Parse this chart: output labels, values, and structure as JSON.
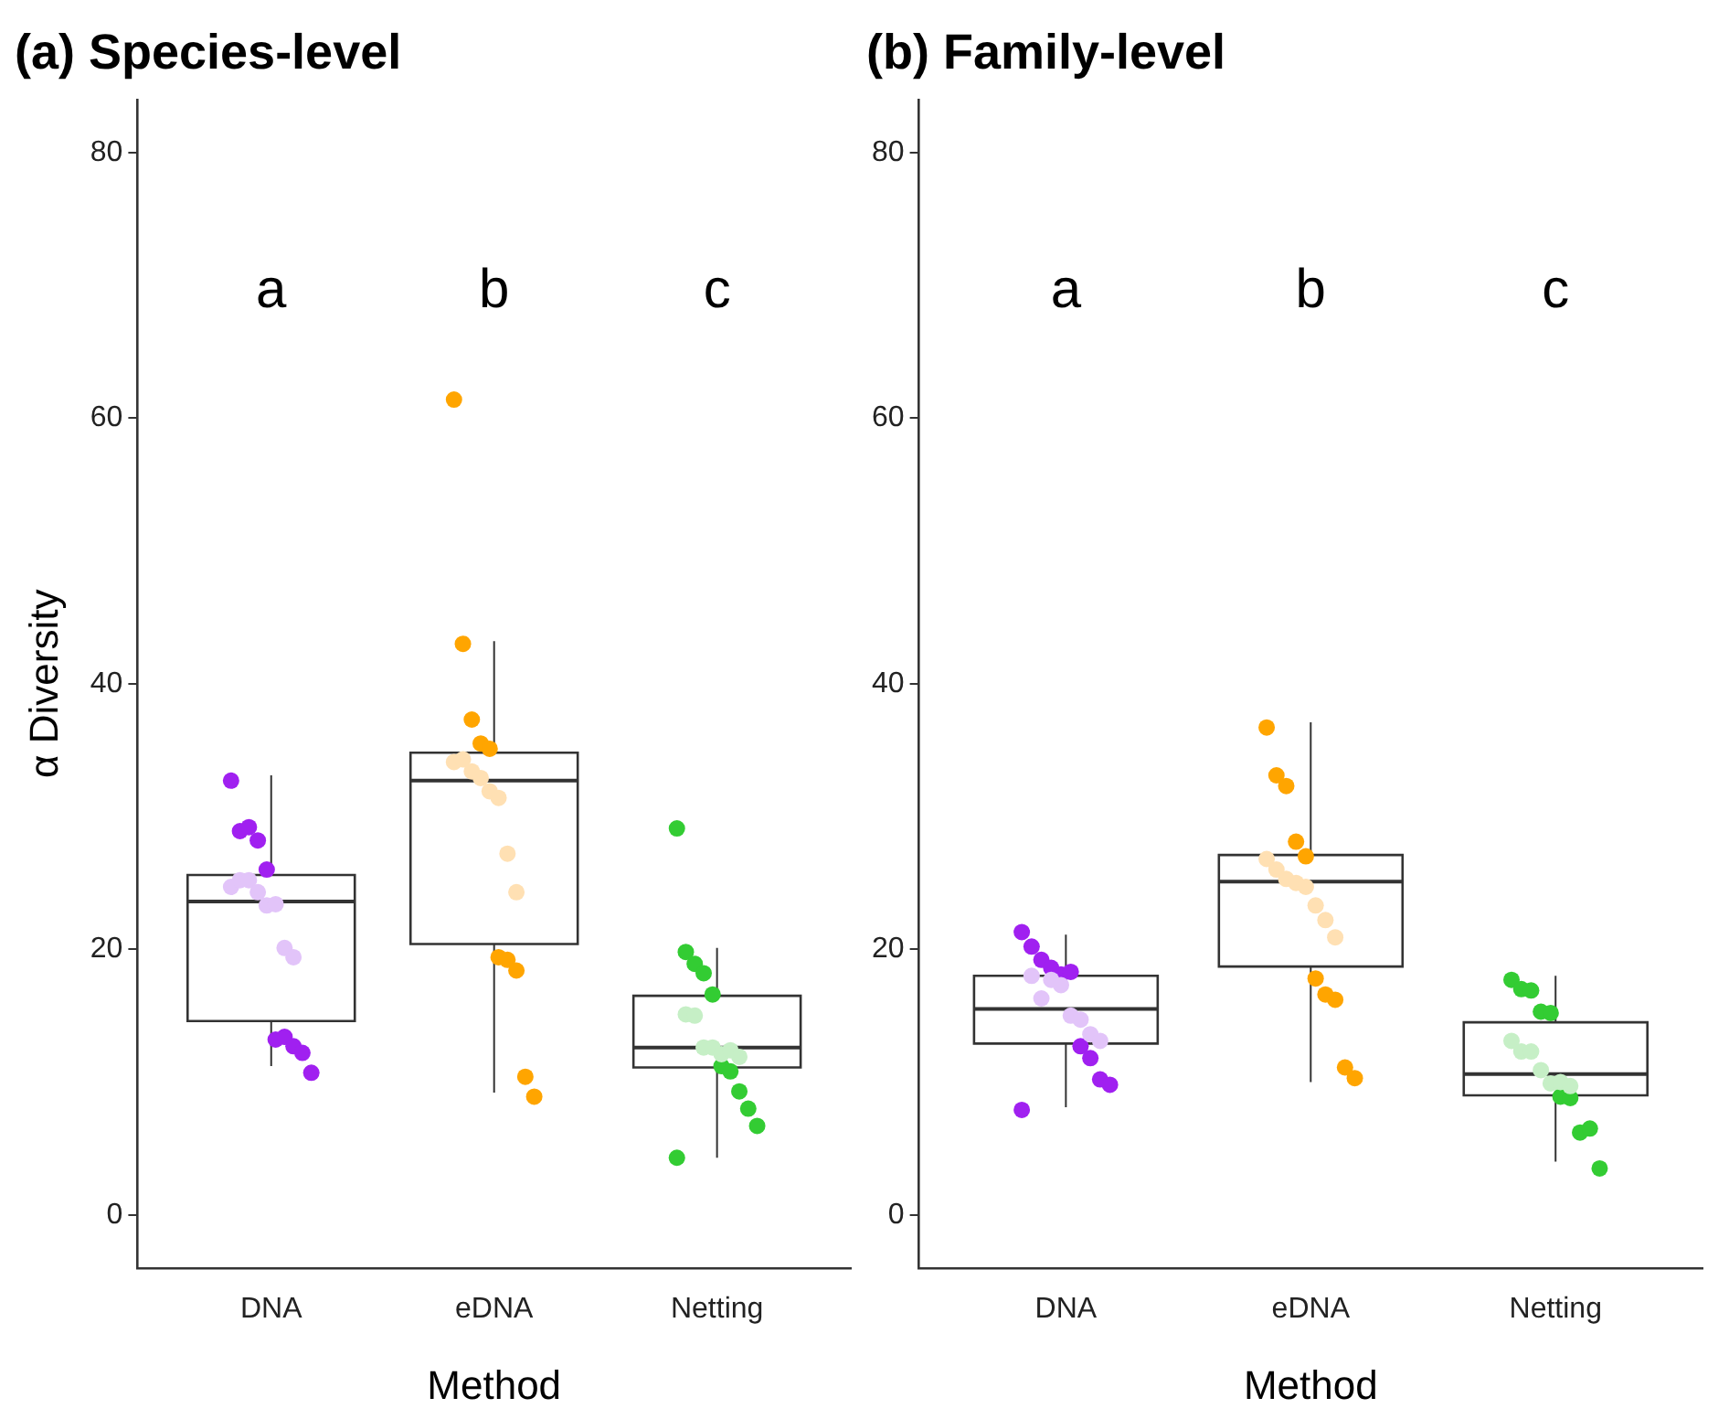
{
  "chart_data": [
    {
      "type": "box",
      "title": "(a) Species-level",
      "xlabel": "Method",
      "ylabel": "α Diversity",
      "categories": [
        "DNA",
        "eDNA",
        "Netting"
      ],
      "ylim": [
        -4,
        84
      ],
      "yticks": [
        0,
        20,
        40,
        60,
        80
      ],
      "marker": "circle",
      "boxes": [
        {
          "low": 11.2,
          "q1": 14.6,
          "median": 23.6,
          "q3": 25.6,
          "high": 33.1
        },
        {
          "low": 9.2,
          "q1": 20.4,
          "median": 32.7,
          "q3": 34.8,
          "high": 43.2
        },
        {
          "low": 4.3,
          "q1": 11.1,
          "median": 12.6,
          "q3": 16.5,
          "high": 20.1
        }
      ],
      "annotations": [
        "a",
        "b",
        "c"
      ],
      "series": [
        {
          "type": "scatter",
          "x": [
            "DNA",
            "DNA",
            "DNA",
            "DNA",
            "DNA",
            "DNA",
            "DNA",
            "DNA",
            "DNA",
            "DNA",
            "DNA",
            "DNA",
            "DNA",
            "DNA",
            "DNA",
            "DNA",
            "DNA",
            "DNA"
          ],
          "values": [
            32.7,
            28.9,
            29.2,
            28.2,
            26.0,
            13.2,
            13.4,
            12.7,
            12.2,
            10.7,
            24.7,
            25.2,
            25.2,
            24.3,
            23.3,
            23.4,
            20.1,
            19.4
          ],
          "colors": [
            "#a020f0",
            "#a020f0",
            "#a020f0",
            "#a020f0",
            "#a020f0",
            "#a020f0",
            "#a020f0",
            "#a020f0",
            "#a020f0",
            "#a020f0",
            "#e2c4f9",
            "#e2c4f9",
            "#e2c4f9",
            "#e2c4f9",
            "#e2c4f9",
            "#e2c4f9",
            "#e2c4f9",
            "#e2c4f9"
          ]
        },
        {
          "type": "scatter",
          "x": [
            "eDNA",
            "eDNA",
            "eDNA",
            "eDNA",
            "eDNA",
            "eDNA",
            "eDNA",
            "eDNA",
            "eDNA",
            "eDNA",
            "eDNA",
            "eDNA",
            "eDNA",
            "eDNA",
            "eDNA",
            "eDNA",
            "eDNA",
            "eDNA"
          ],
          "values": [
            61.4,
            43.0,
            37.3,
            35.5,
            35.1,
            19.4,
            19.2,
            18.4,
            10.4,
            8.9,
            34.1,
            34.3,
            33.4,
            32.9,
            31.9,
            31.4,
            27.2,
            24.3
          ],
          "colors": [
            "#ffa500",
            "#ffa500",
            "#ffa500",
            "#ffa500",
            "#ffa500",
            "#ffa500",
            "#ffa500",
            "#ffa500",
            "#ffa500",
            "#ffa500",
            "#ffe0b3",
            "#ffe0b3",
            "#ffe0b3",
            "#ffe0b3",
            "#ffe0b3",
            "#ffe0b3",
            "#ffe0b3",
            "#ffe0b3"
          ]
        },
        {
          "type": "scatter",
          "x": [
            "Netting",
            "Netting",
            "Netting",
            "Netting",
            "Netting",
            "Netting",
            "Netting",
            "Netting",
            "Netting",
            "Netting",
            "Netting",
            "Netting",
            "Netting",
            "Netting",
            "Netting",
            "Netting",
            "Netting",
            "Netting"
          ],
          "values": [
            29.1,
            19.8,
            18.9,
            18.2,
            16.6,
            11.2,
            10.8,
            9.3,
            8.0,
            6.7,
            4.3,
            15.1,
            15.0,
            12.6,
            12.6,
            12.1,
            12.4,
            11.9
          ],
          "colors": [
            "#33cc33",
            "#33cc33",
            "#33cc33",
            "#33cc33",
            "#33cc33",
            "#33cc33",
            "#33cc33",
            "#33cc33",
            "#33cc33",
            "#33cc33",
            "#33cc33",
            "#c6efc6",
            "#c6efc6",
            "#c6efc6",
            "#c6efc6",
            "#c6efc6",
            "#c6efc6",
            "#c6efc6"
          ]
        }
      ]
    },
    {
      "type": "box",
      "title": "(b) Family-level",
      "xlabel": "Method",
      "categories": [
        "DNA",
        "eDNA",
        "Netting"
      ],
      "ylim": [
        -4,
        84
      ],
      "yticks": [
        0,
        20,
        40,
        60,
        80
      ],
      "marker": "circle",
      "boxes": [
        {
          "low": 8.1,
          "q1": 12.9,
          "median": 15.5,
          "q3": 18.0,
          "high": 21.1
        },
        {
          "low": 10.0,
          "q1": 18.7,
          "median": 25.1,
          "q3": 27.1,
          "high": 37.1
        },
        {
          "low": 4.0,
          "q1": 9.0,
          "median": 10.6,
          "q3": 14.5,
          "high": 18.0
        }
      ],
      "annotations": [
        "a",
        "b",
        "c"
      ],
      "series": [
        {
          "type": "scatter",
          "x": [
            "DNA",
            "DNA",
            "DNA",
            "DNA",
            "DNA",
            "DNA",
            "DNA",
            "DNA",
            "DNA",
            "DNA",
            "DNA",
            "DNA",
            "DNA",
            "DNA",
            "DNA",
            "DNA",
            "DNA",
            "DNA",
            "DNA"
          ],
          "values": [
            21.3,
            20.2,
            19.2,
            18.6,
            18.1,
            18.3,
            12.7,
            11.8,
            10.2,
            9.8,
            7.9,
            18.0,
            16.3,
            17.7,
            17.3,
            15.0,
            14.7,
            13.6,
            13.1
          ],
          "colors": [
            "#a020f0",
            "#a020f0",
            "#a020f0",
            "#a020f0",
            "#a020f0",
            "#a020f0",
            "#a020f0",
            "#a020f0",
            "#a020f0",
            "#a020f0",
            "#a020f0",
            "#e2c4f9",
            "#e2c4f9",
            "#e2c4f9",
            "#e2c4f9",
            "#e2c4f9",
            "#e2c4f9",
            "#e2c4f9",
            "#e2c4f9"
          ]
        },
        {
          "type": "scatter",
          "x": [
            "eDNA",
            "eDNA",
            "eDNA",
            "eDNA",
            "eDNA",
            "eDNA",
            "eDNA",
            "eDNA",
            "eDNA",
            "eDNA",
            "eDNA",
            "eDNA",
            "eDNA",
            "eDNA",
            "eDNA",
            "eDNA",
            "eDNA",
            "eDNA"
          ],
          "values": [
            36.7,
            33.1,
            32.3,
            28.1,
            27.0,
            17.8,
            16.6,
            16.2,
            11.1,
            10.3,
            26.8,
            26.0,
            25.3,
            25.0,
            24.7,
            23.3,
            22.2,
            20.9
          ],
          "colors": [
            "#ffa500",
            "#ffa500",
            "#ffa500",
            "#ffa500",
            "#ffa500",
            "#ffa500",
            "#ffa500",
            "#ffa500",
            "#ffa500",
            "#ffa500",
            "#ffe0b3",
            "#ffe0b3",
            "#ffe0b3",
            "#ffe0b3",
            "#ffe0b3",
            "#ffe0b3",
            "#ffe0b3",
            "#ffe0b3"
          ]
        },
        {
          "type": "scatter",
          "x": [
            "Netting",
            "Netting",
            "Netting",
            "Netting",
            "Netting",
            "Netting",
            "Netting",
            "Netting",
            "Netting",
            "Netting",
            "Netting",
            "Netting",
            "Netting",
            "Netting",
            "Netting",
            "Netting",
            "Netting"
          ],
          "values": [
            17.7,
            17.0,
            16.9,
            15.3,
            15.2,
            8.9,
            8.8,
            6.2,
            6.5,
            3.5,
            13.1,
            12.3,
            12.3,
            10.9,
            9.9,
            10.0,
            9.7
          ],
          "colors": [
            "#33cc33",
            "#33cc33",
            "#33cc33",
            "#33cc33",
            "#33cc33",
            "#33cc33",
            "#33cc33",
            "#33cc33",
            "#33cc33",
            "#33cc33",
            "#c6efc6",
            "#c6efc6",
            "#c6efc6",
            "#c6efc6",
            "#c6efc6",
            "#c6efc6",
            "#c6efc6"
          ]
        }
      ]
    }
  ]
}
